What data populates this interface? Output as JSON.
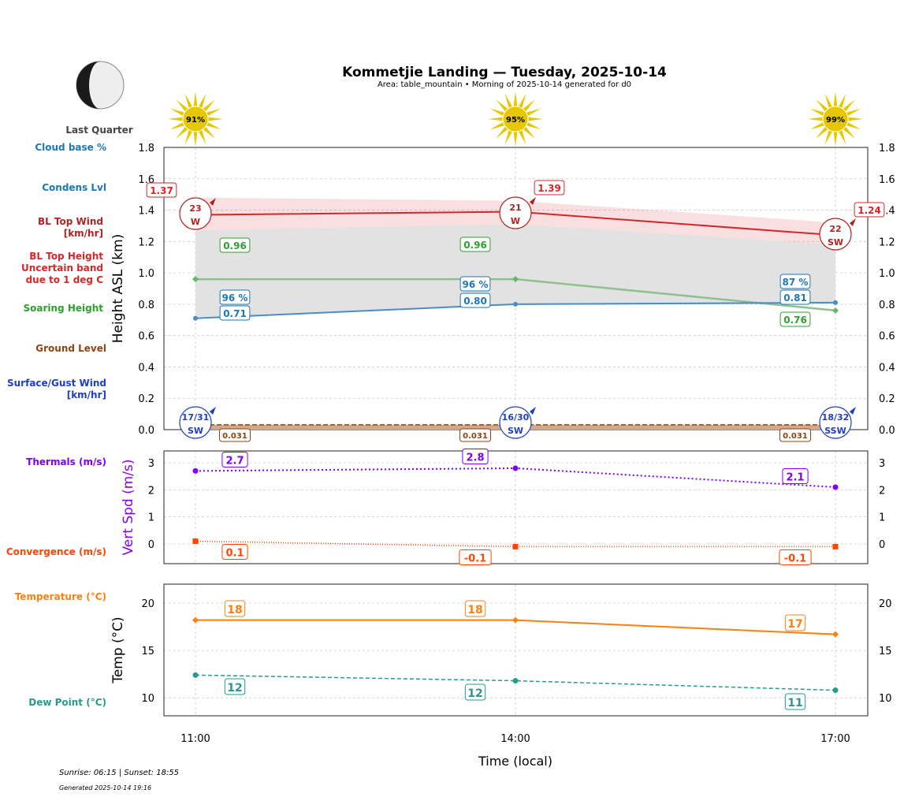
{
  "title": "Kommetjie Landing — Tuesday, 2025-10-14",
  "subtitle": "Area: table_mountain • Morning of 2025-10-14 generated for d0",
  "moon": {
    "phase": "Last Quarter"
  },
  "footer": {
    "sun": "Sunrise: 06:15 | Sunset: 18:55",
    "generated": "Generated 2025-10-14 19:16"
  },
  "side_labels": {
    "cloud_base": "Cloud base %",
    "condens": "Condens Lvl",
    "bl_wind": "BL Top Wind\n[km/hr]",
    "bl_height": "BL Top Height\nUncertain band\ndue to 1 deg C",
    "soaring": "Soaring Height",
    "ground": "Ground Level",
    "surface_wind": "Surface/Gust Wind\n[km/hr]",
    "thermals": "Thermals (m/s)",
    "convergence": "Convergence (m/s)",
    "temperature": "Temperature (°C)",
    "dew_point": "Dew Point (°C)"
  },
  "colors": {
    "cloud": "#1f77b4",
    "bl_wind": "#b22222",
    "bl_top": "#d62728",
    "soaring": "#2ca02c",
    "ground": "#8b4513",
    "surface_wind": "#1f3fbf",
    "thermals": "#8000ff",
    "convergence": "#ff4500",
    "temperature": "#ff7f0e",
    "dew_point": "#259a8f",
    "sun": "#e6c800"
  },
  "chart_data": [
    {
      "type": "line",
      "ylabel": "Height ASL (km)",
      "ylim": [
        0,
        1.8
      ],
      "yticks": [
        "0.0",
        "0.2",
        "0.4",
        "0.6",
        "0.8",
        "1.0",
        "1.2",
        "1.4",
        "1.6",
        "1.8"
      ],
      "x": [
        "11:00",
        "14:00",
        "17:00"
      ],
      "grid": true,
      "sun_percent": [
        "91%",
        "95%",
        "99%"
      ],
      "series": [
        {
          "key": "bl_top",
          "values": [
            1.37,
            1.39,
            1.24
          ],
          "labels": [
            "1.37",
            "1.39",
            "1.24"
          ],
          "band_upper": [
            1.48,
            1.46,
            1.32
          ],
          "band_lower": [
            1.27,
            1.31,
            1.18
          ]
        },
        {
          "key": "soaring",
          "values": [
            0.96,
            0.96,
            0.76
          ],
          "labels": [
            "0.96",
            "0.96",
            "0.76"
          ]
        },
        {
          "key": "condens",
          "values": [
            0.71,
            0.8,
            0.81
          ],
          "labels": [
            "0.71",
            "0.80",
            "0.81"
          ],
          "cloud_base_pct": [
            "96 %",
            "96 %",
            "87 %"
          ]
        },
        {
          "key": "ground",
          "values": [
            0.031,
            0.031,
            0.031
          ],
          "labels": [
            "0.031",
            "0.031",
            "0.031"
          ]
        }
      ],
      "bl_wind": [
        {
          "speed": "23",
          "dir": "W"
        },
        {
          "speed": "21",
          "dir": "W"
        },
        {
          "speed": "22",
          "dir": "SW"
        }
      ],
      "surface_wind": [
        {
          "speed": "17/31",
          "dir": "SW"
        },
        {
          "speed": "16/30",
          "dir": "SW"
        },
        {
          "speed": "18/32",
          "dir": "SSW"
        }
      ]
    },
    {
      "type": "line",
      "ylabel": "Vert Spd (m/s)",
      "ylim": [
        -0.73,
        3.44
      ],
      "yticks": [
        "0",
        "1",
        "2",
        "3"
      ],
      "x": [
        "11:00",
        "14:00",
        "17:00"
      ],
      "grid": true,
      "series": [
        {
          "key": "thermals",
          "values": [
            2.7,
            2.8,
            2.1
          ],
          "labels": [
            "2.7",
            "2.8",
            "2.1"
          ]
        },
        {
          "key": "convergence",
          "values": [
            0.1,
            -0.1,
            -0.1
          ],
          "labels": [
            "0.1",
            "-0.1",
            "-0.1"
          ]
        }
      ]
    },
    {
      "type": "line",
      "ylabel": "Temp (°C)",
      "xlabel": "Time (local)",
      "ylim": [
        8.1,
        22
      ],
      "yticks": [
        "10",
        "15",
        "20"
      ],
      "x": [
        "11:00",
        "14:00",
        "17:00"
      ],
      "grid": true,
      "series": [
        {
          "key": "temperature",
          "values": [
            18.2,
            18.2,
            16.7
          ],
          "labels": [
            "18",
            "18",
            "17"
          ]
        },
        {
          "key": "dew_point",
          "values": [
            12.4,
            11.8,
            10.8
          ],
          "labels": [
            "12",
            "12",
            "11"
          ]
        }
      ]
    }
  ]
}
